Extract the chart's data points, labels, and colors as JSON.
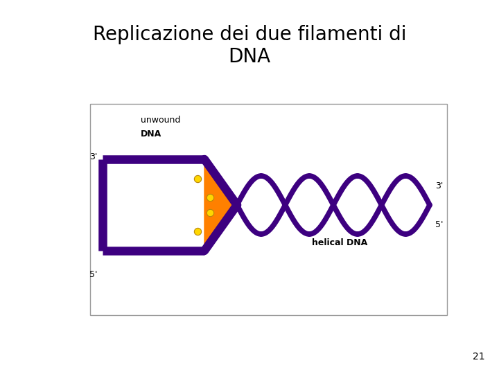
{
  "title_line1": "Replicazione dei due filamenti di",
  "title_line2": "DNA",
  "title_fontsize": 20,
  "title_font": "Georgia",
  "bg_color": "#ffffff",
  "helix_color": "#3D0080",
  "orange_color": "#FF8000",
  "dot_color": "#FFD700",
  "dot_edge_color": "#B8860B",
  "label_3prime_top": "3'",
  "label_5prime_bottom": "5'",
  "label_3prime_right_top": "3'",
  "label_5prime_right_bottom": "5'",
  "label_unwound": "unwound\nDNA",
  "label_helical": "helical DNA",
  "page_number": "21",
  "border_color": "#999999",
  "border_lw": 1.0
}
